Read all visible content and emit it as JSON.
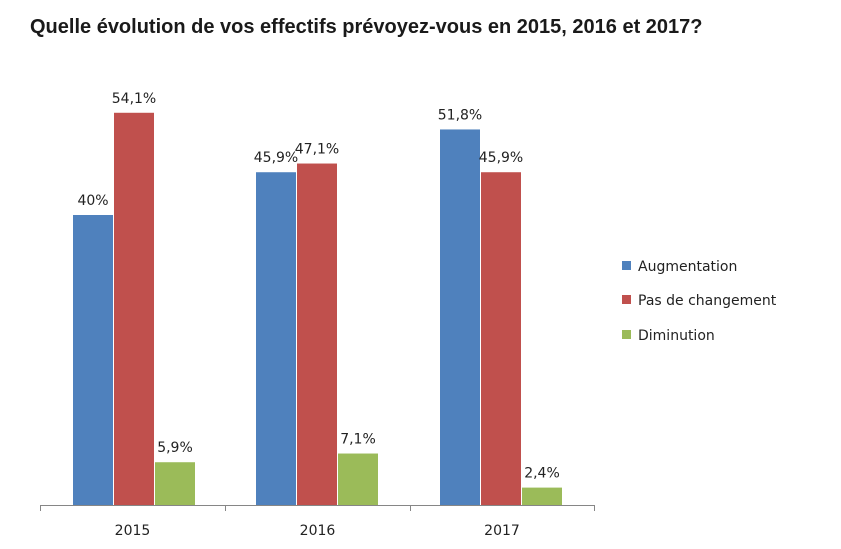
{
  "chart_data": {
    "type": "bar",
    "title": "Quelle évolution de vos effectifs prévoyez-vous en 2015, 2016 et 2017?",
    "categories": [
      "2015",
      "2016",
      "2017"
    ],
    "series": [
      {
        "name": "Augmentation",
        "values": [
          40.0,
          45.9,
          51.8
        ],
        "labels": [
          "40%",
          "45,9%",
          "51,8%"
        ],
        "color": "#4f81bd"
      },
      {
        "name": "Pas de changement",
        "values": [
          54.1,
          47.1,
          45.9
        ],
        "labels": [
          "54,1%",
          "47,1%",
          "45,9%"
        ],
        "color": "#c0504d"
      },
      {
        "name": "Diminution",
        "values": [
          5.9,
          7.1,
          2.4
        ],
        "labels": [
          "5,9%",
          "7,1%",
          "2,4%"
        ],
        "color": "#9bbb59"
      }
    ],
    "ylim": [
      0,
      60
    ],
    "grid": false,
    "legend": "right",
    "xlabel": "",
    "ylabel": ""
  }
}
